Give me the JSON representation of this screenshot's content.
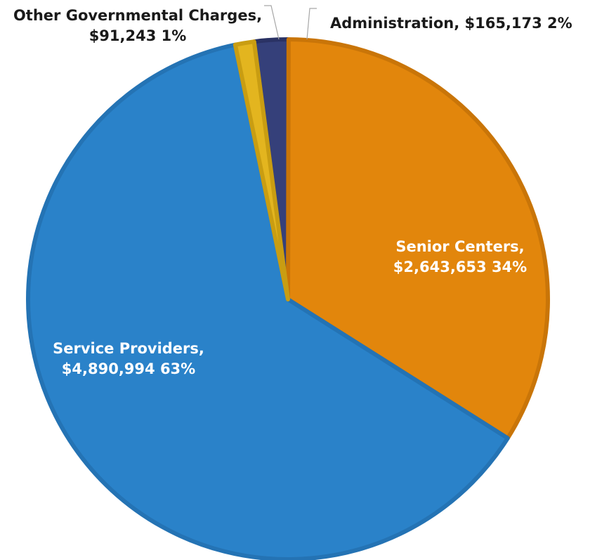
{
  "chart_data": {
    "type": "pie",
    "title": "",
    "slices": [
      {
        "name": "Administration",
        "value": 165173,
        "percent": "2%",
        "label_lines": [
          "Administration, $165,173 2%"
        ],
        "color": "#35407a",
        "stroke": "#2a3264",
        "label_color": "#1a1a1a"
      },
      {
        "name": "Senior Centers",
        "value": 2643653,
        "percent": "34%",
        "label_lines": [
          "Senior Centers,",
          "$2,643,653 34%"
        ],
        "color": "#e2860c",
        "stroke": "#c97508",
        "label_color": "#ffffff"
      },
      {
        "name": "Service Providers",
        "value": 4890994,
        "percent": "63%",
        "label_lines": [
          "Service Providers,",
          "$4,890,994 63%"
        ],
        "color": "#2a82c9",
        "stroke": "#2473b4",
        "label_color": "#ffffff"
      },
      {
        "name": "Other Governmental Charges",
        "value": 91243,
        "percent": "1%",
        "label_lines": [
          "Other Governmental Charges,",
          "$91,243 1%"
        ],
        "color": "#e3b51f",
        "stroke": "#c99d12",
        "label_color": "#1a1a1a"
      }
    ]
  }
}
